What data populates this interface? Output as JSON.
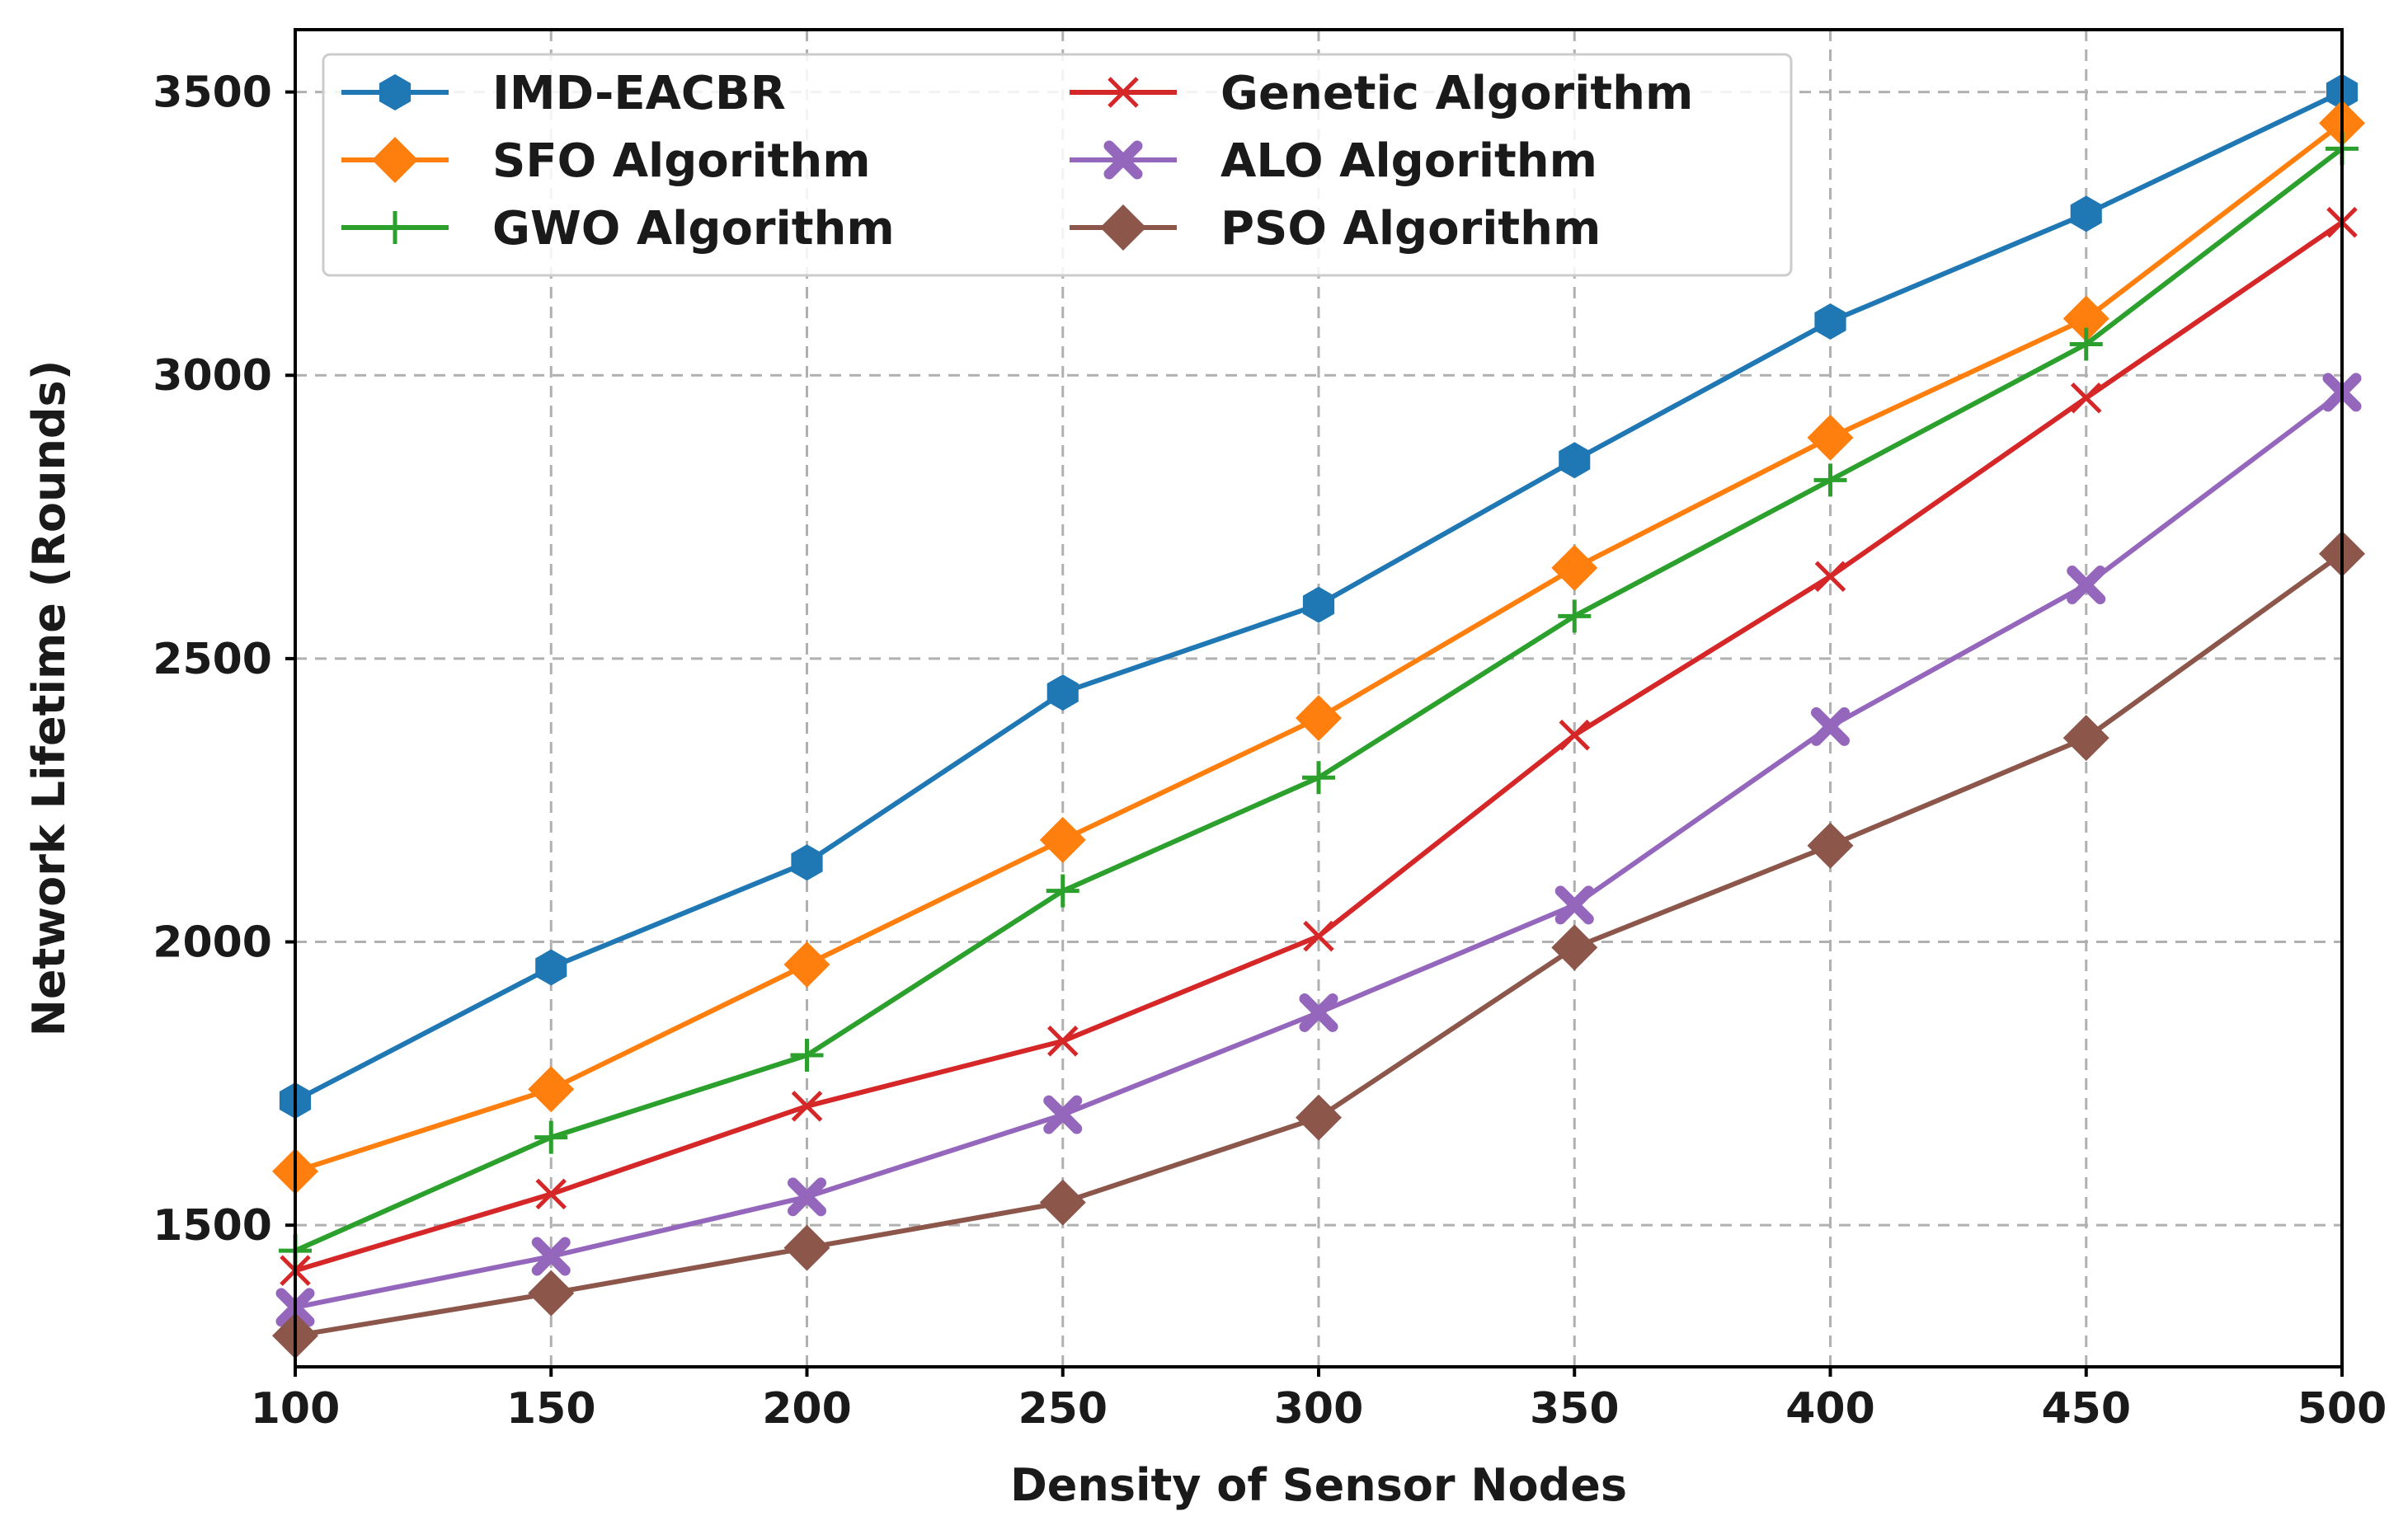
{
  "chart_data": {
    "type": "line",
    "xlabel": "Density of Sensor Nodes",
    "ylabel": "Network Lifetime (Rounds)",
    "x": [
      100,
      150,
      200,
      250,
      300,
      350,
      400,
      450,
      500
    ],
    "xlim": [
      100,
      500
    ],
    "ylim": [
      1250,
      3610
    ],
    "xticks": [
      "100",
      "150",
      "200",
      "250",
      "300",
      "350",
      "400",
      "450",
      "500"
    ],
    "yticks": [
      1500,
      2000,
      2500,
      3000,
      3500
    ],
    "yticks_labels": [
      "1500",
      "2000",
      "2500",
      "3000",
      "3500"
    ],
    "grid": true,
    "legend_position": "top-left",
    "legend_columns": 2,
    "series": [
      {
        "name": "IMD-EACBR",
        "color": "#1f77b4",
        "marker": "hexagon",
        "values": [
          1720,
          1955,
          2140,
          2440,
          2595,
          2850,
          3095,
          3285,
          3500
        ]
      },
      {
        "name": "SFO Algorithm",
        "color": "#ff7f0e",
        "marker": "diamond",
        "values": [
          1595,
          1740,
          1960,
          2180,
          2395,
          2660,
          2890,
          3100,
          3445
        ]
      },
      {
        "name": "GWO Algorithm",
        "color": "#2ca02c",
        "marker": "plus",
        "values": [
          1455,
          1655,
          1800,
          2090,
          2290,
          2575,
          2815,
          3055,
          3400
        ]
      },
      {
        "name": "Genetic Algorithm",
        "color": "#d62728",
        "marker": "x",
        "values": [
          1420,
          1555,
          1710,
          1825,
          2010,
          2365,
          2645,
          2960,
          3270
        ]
      },
      {
        "name": "ALO Algorithm",
        "color": "#9467bd",
        "marker": "x-filled",
        "values": [
          1355,
          1445,
          1550,
          1695,
          1875,
          2065,
          2380,
          2630,
          2970
        ]
      },
      {
        "name": "PSO Algorithm",
        "color": "#8c564b",
        "marker": "diamond",
        "values": [
          1305,
          1380,
          1460,
          1540,
          1690,
          1990,
          2170,
          2360,
          2685
        ]
      }
    ]
  }
}
